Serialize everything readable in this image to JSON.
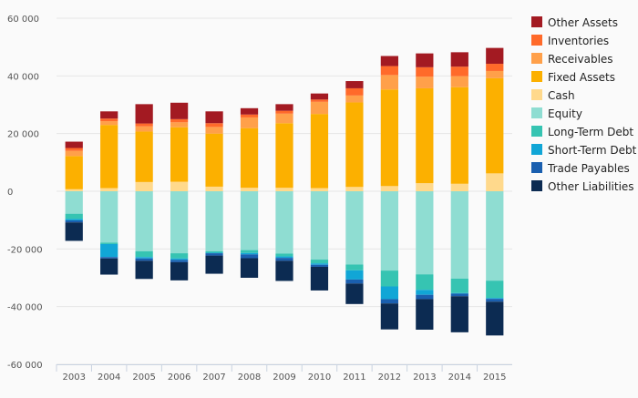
{
  "chart_data": {
    "type": "bar",
    "stacked": true,
    "diverging": true,
    "categories": [
      "2003",
      "2004",
      "2005",
      "2006",
      "2007",
      "2008",
      "2009",
      "2010",
      "2011",
      "2012",
      "2013",
      "2014",
      "2015"
    ],
    "ylim": [
      -60000,
      60000
    ],
    "yticks": [
      -60000,
      -40000,
      -20000,
      0,
      20000,
      40000,
      60000
    ],
    "ytick_labels": [
      "-60 000",
      "-40 000",
      "-20 000",
      "0",
      "20 000",
      "40 000",
      "60 000"
    ],
    "grid": "horizontal",
    "legend_position": "right",
    "series": [
      {
        "name": "Other Assets",
        "color": "#a31a22",
        "values": [
          2200,
          2500,
          6700,
          5700,
          4100,
          2200,
          2300,
          2100,
          2500,
          3500,
          4800,
          5000,
          5500
        ]
      },
      {
        "name": "Inventories",
        "color": "#ff6a2a",
        "values": [
          1000,
          900,
          1000,
          1100,
          1300,
          1000,
          1000,
          800,
          2500,
          3100,
          3300,
          3300,
          2500
        ]
      },
      {
        "name": "Receivables",
        "color": "#ffa04a",
        "values": [
          1800,
          1300,
          1800,
          1700,
          2300,
          3700,
          3300,
          4200,
          2400,
          5000,
          4000,
          3800,
          2500
        ]
      },
      {
        "name": "Fixed Assets",
        "color": "#fcb000",
        "values": [
          11500,
          21900,
          17500,
          18900,
          18400,
          20700,
          22400,
          25700,
          29300,
          33500,
          32900,
          33500,
          33000
        ]
      },
      {
        "name": "Cash",
        "color": "#ffd98c",
        "values": [
          700,
          1100,
          3200,
          3300,
          1600,
          1200,
          1200,
          1100,
          1500,
          1800,
          2800,
          2600,
          6200
        ]
      },
      {
        "name": "Equity",
        "color": "#8fddd2",
        "values": [
          -7800,
          -17800,
          -20800,
          -21500,
          -20800,
          -20400,
          -21600,
          -23700,
          -25400,
          -27500,
          -28800,
          -30300,
          -31000
        ]
      },
      {
        "name": "Long-Term Debt",
        "color": "#36c4b2",
        "values": [
          -1800,
          -500,
          -2000,
          -1800,
          -500,
          -1000,
          -1000,
          -1300,
          -2000,
          -5500,
          -5400,
          -5000,
          -6000
        ]
      },
      {
        "name": "Short-Term Debt",
        "color": "#11a6d6",
        "values": [
          -500,
          -4500,
          -500,
          -500,
          -200,
          -500,
          -500,
          -500,
          -3200,
          -4400,
          -1700,
          -200,
          -300
        ]
      },
      {
        "name": "Trade Payables",
        "color": "#1a5faf",
        "values": [
          -700,
          -500,
          -800,
          -800,
          -800,
          -1300,
          -1000,
          -700,
          -1400,
          -1500,
          -1500,
          -900,
          -1000
        ]
      },
      {
        "name": "Other Liabilities",
        "color": "#0c2b52",
        "values": [
          -6400,
          -5600,
          -6300,
          -6300,
          -6300,
          -6800,
          -7000,
          -8200,
          -7100,
          -9000,
          -10600,
          -12500,
          -11700
        ]
      }
    ]
  }
}
